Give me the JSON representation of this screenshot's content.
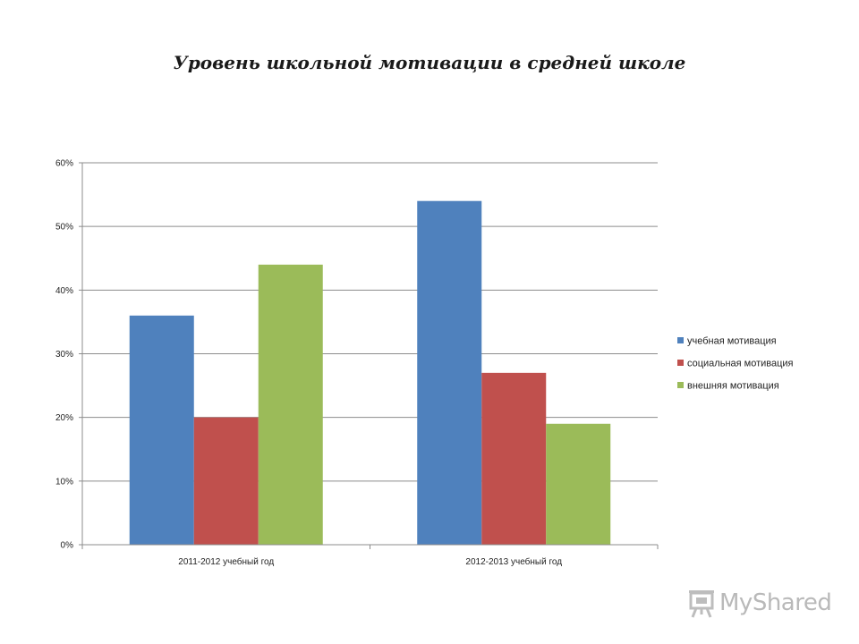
{
  "chart_data": {
    "type": "bar",
    "title": "Уровень школьной мотивации в средней школе",
    "categories": [
      "2011-2012 учебный год",
      "2012-2013 учебный год"
    ],
    "series": [
      {
        "name": "учебная мотивация",
        "values": [
          36,
          54
        ],
        "color": "#4F81BD"
      },
      {
        "name": "социальная мотивация",
        "values": [
          20,
          27
        ],
        "color": "#C0504D"
      },
      {
        "name": "внешняя мотивация",
        "values": [
          44,
          19
        ],
        "color": "#9BBB59"
      }
    ],
    "yticks": [
      "0%",
      "10%",
      "20%",
      "30%",
      "40%",
      "50%",
      "60%"
    ],
    "ylim": [
      0,
      60
    ],
    "unit": "%",
    "grid": true,
    "legend_position": "right"
  },
  "watermark": {
    "text": "MyShared",
    "icon": "projector-screen-icon"
  }
}
